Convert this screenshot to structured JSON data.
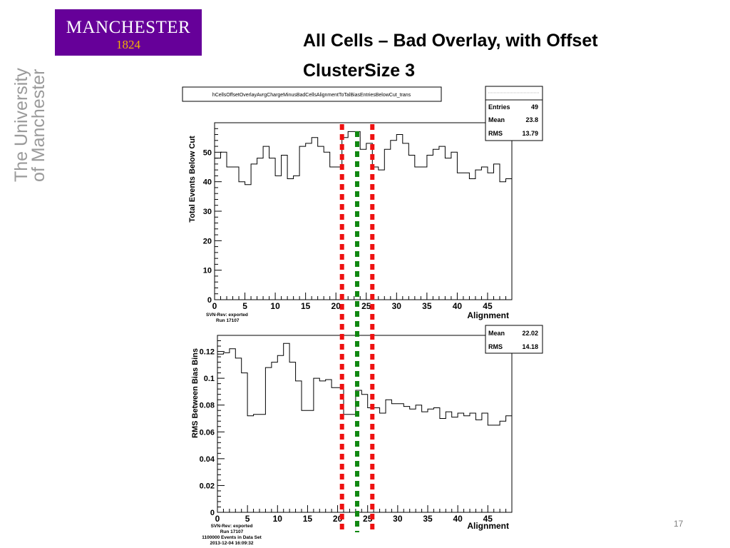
{
  "logo": {
    "name": "MANCHESTER",
    "year": "1824"
  },
  "vertical_brand": {
    "line1": "The University",
    "line2": "of Manchester"
  },
  "slide": {
    "title_line1": "All Cells – Bad Overlay, with Offset",
    "title_line2": "ClusterSize 3",
    "page_number": "17"
  },
  "colors": {
    "brand_purple": "#660099",
    "brand_gold": "#f5b400",
    "marker_red": "#ee1111",
    "marker_green": "#118811"
  },
  "markers": {
    "red_x": [
      21,
      26
    ],
    "green_x": [
      23.5
    ]
  },
  "chart_data": [
    {
      "type": "line",
      "histogram_name": "hCellsOffsetOverlayAvrgChargeMinusBadCellsAlignmentToTalBiasEntriesBelowCut_trans",
      "xlabel": "Alignment",
      "ylabel": "Total Events Below Cut",
      "xlim": [
        0,
        49
      ],
      "ylim": [
        0,
        60
      ],
      "x_ticks": [
        0,
        5,
        10,
        15,
        20,
        25,
        30,
        35,
        40,
        45
      ],
      "y_ticks": [
        0,
        10,
        20,
        30,
        40,
        50
      ],
      "bins_x0": 0,
      "bin_width": 1,
      "values": [
        48,
        50,
        45,
        45,
        40,
        39,
        46,
        48,
        52,
        48,
        42,
        49,
        41,
        42,
        52,
        53,
        55,
        52,
        50,
        45,
        45,
        55,
        57,
        57,
        51,
        53,
        45,
        44,
        51,
        54,
        56,
        53,
        49,
        45,
        45,
        49,
        51,
        52,
        48,
        50,
        43,
        43,
        41,
        44,
        45,
        43,
        46,
        40,
        41
      ],
      "stats": [
        {
          "label": "Entries",
          "value": "49"
        },
        {
          "label": "Mean",
          "value": "23.8"
        },
        {
          "label": "RMS",
          "value": "13.79"
        }
      ],
      "footer": [
        "SVN-Rev: exported",
        "Run 17107"
      ]
    },
    {
      "type": "line",
      "xlabel": "Alignment",
      "ylabel": "RMS Between Bias Bins",
      "xlim": [
        0,
        49
      ],
      "ylim": [
        0,
        0.132
      ],
      "x_ticks": [
        0,
        5,
        10,
        15,
        20,
        25,
        30,
        35,
        40,
        45
      ],
      "y_ticks": [
        0,
        0.02,
        0.04,
        0.06,
        0.08,
        0.1,
        0.12
      ],
      "y_tick_labels": [
        "0",
        "0.02",
        "0.04",
        "0.06",
        "0.08",
        "0.1",
        "0.12"
      ],
      "bins_x0": 0,
      "bin_width": 1,
      "values": [
        0.118,
        0.119,
        0.122,
        0.115,
        0.104,
        0.072,
        0.073,
        0.073,
        0.108,
        0.112,
        0.117,
        0.126,
        0.112,
        0.098,
        0.076,
        0.076,
        0.1,
        0.098,
        0.099,
        0.093,
        0.093,
        0.073,
        0.073,
        0.091,
        0.088,
        0.078,
        0.078,
        0.074,
        0.084,
        0.081,
        0.081,
        0.079,
        0.077,
        0.08,
        0.075,
        0.077,
        0.078,
        0.07,
        0.075,
        0.071,
        0.074,
        0.072,
        0.074,
        0.069,
        0.074,
        0.065,
        0.065,
        0.068,
        0.072
      ],
      "stats": [
        {
          "label": "Mean",
          "value": "22.02"
        },
        {
          "label": "RMS",
          "value": "14.18"
        }
      ],
      "footer": [
        "SVN-Rev: exported",
        "Run 17107",
        "1100000 Events in Data Set",
        "2013-12-04 16:09:32"
      ]
    }
  ]
}
